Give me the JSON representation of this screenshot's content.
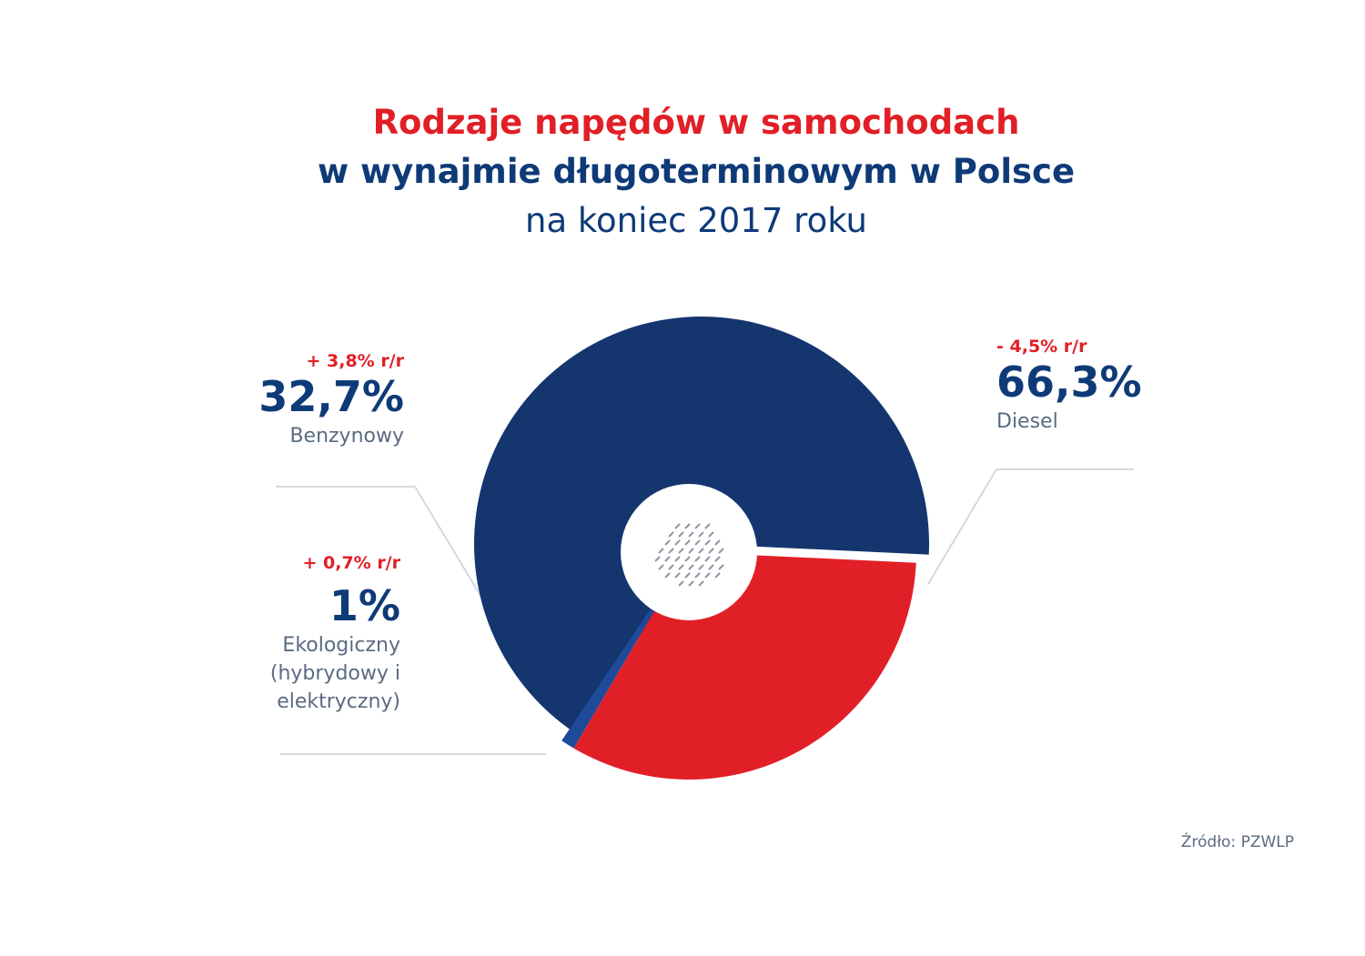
{
  "title": {
    "line1": "Rodzaje napędów w samochodach",
    "line2": "w wynajmie długoterminowym w Polsce",
    "line3": "na koniec 2017 roku"
  },
  "labels": {
    "benzyna": {
      "change": "+ 3,8% r/r",
      "percent": "32,7%",
      "name": "Benzynowy"
    },
    "eko": {
      "change": "+ 0,7% r/r",
      "percent": "1%",
      "name_lines": [
        "Ekologiczny",
        "(hybrydowy i",
        "elektryczny)"
      ]
    },
    "diesel": {
      "change": "- 4,5% r/r",
      "percent": "66,3%",
      "name": "Diesel"
    }
  },
  "source": "Źródło: PZWLP",
  "colors": {
    "diesel": "#14356e",
    "benzyna": "#e11f26",
    "eko": "#1e4a9a",
    "leader": "#d5d9de"
  },
  "chart_data": {
    "type": "pie",
    "categories": [
      "Diesel",
      "Benzynowy",
      "Ekologiczny (hybrydowy i elektryczny)"
    ],
    "values": [
      66.3,
      32.7,
      1.0
    ],
    "changes_yoy": [
      "- 4,5% r/r",
      "+ 3,8% r/r",
      "+ 0,7% r/r"
    ],
    "title": "Rodzaje napędów w samochodach w wynajmie długoterminowym w Polsce",
    "subtitle": "na koniec 2017 roku",
    "style": "donut, Diesel slice exploded"
  }
}
